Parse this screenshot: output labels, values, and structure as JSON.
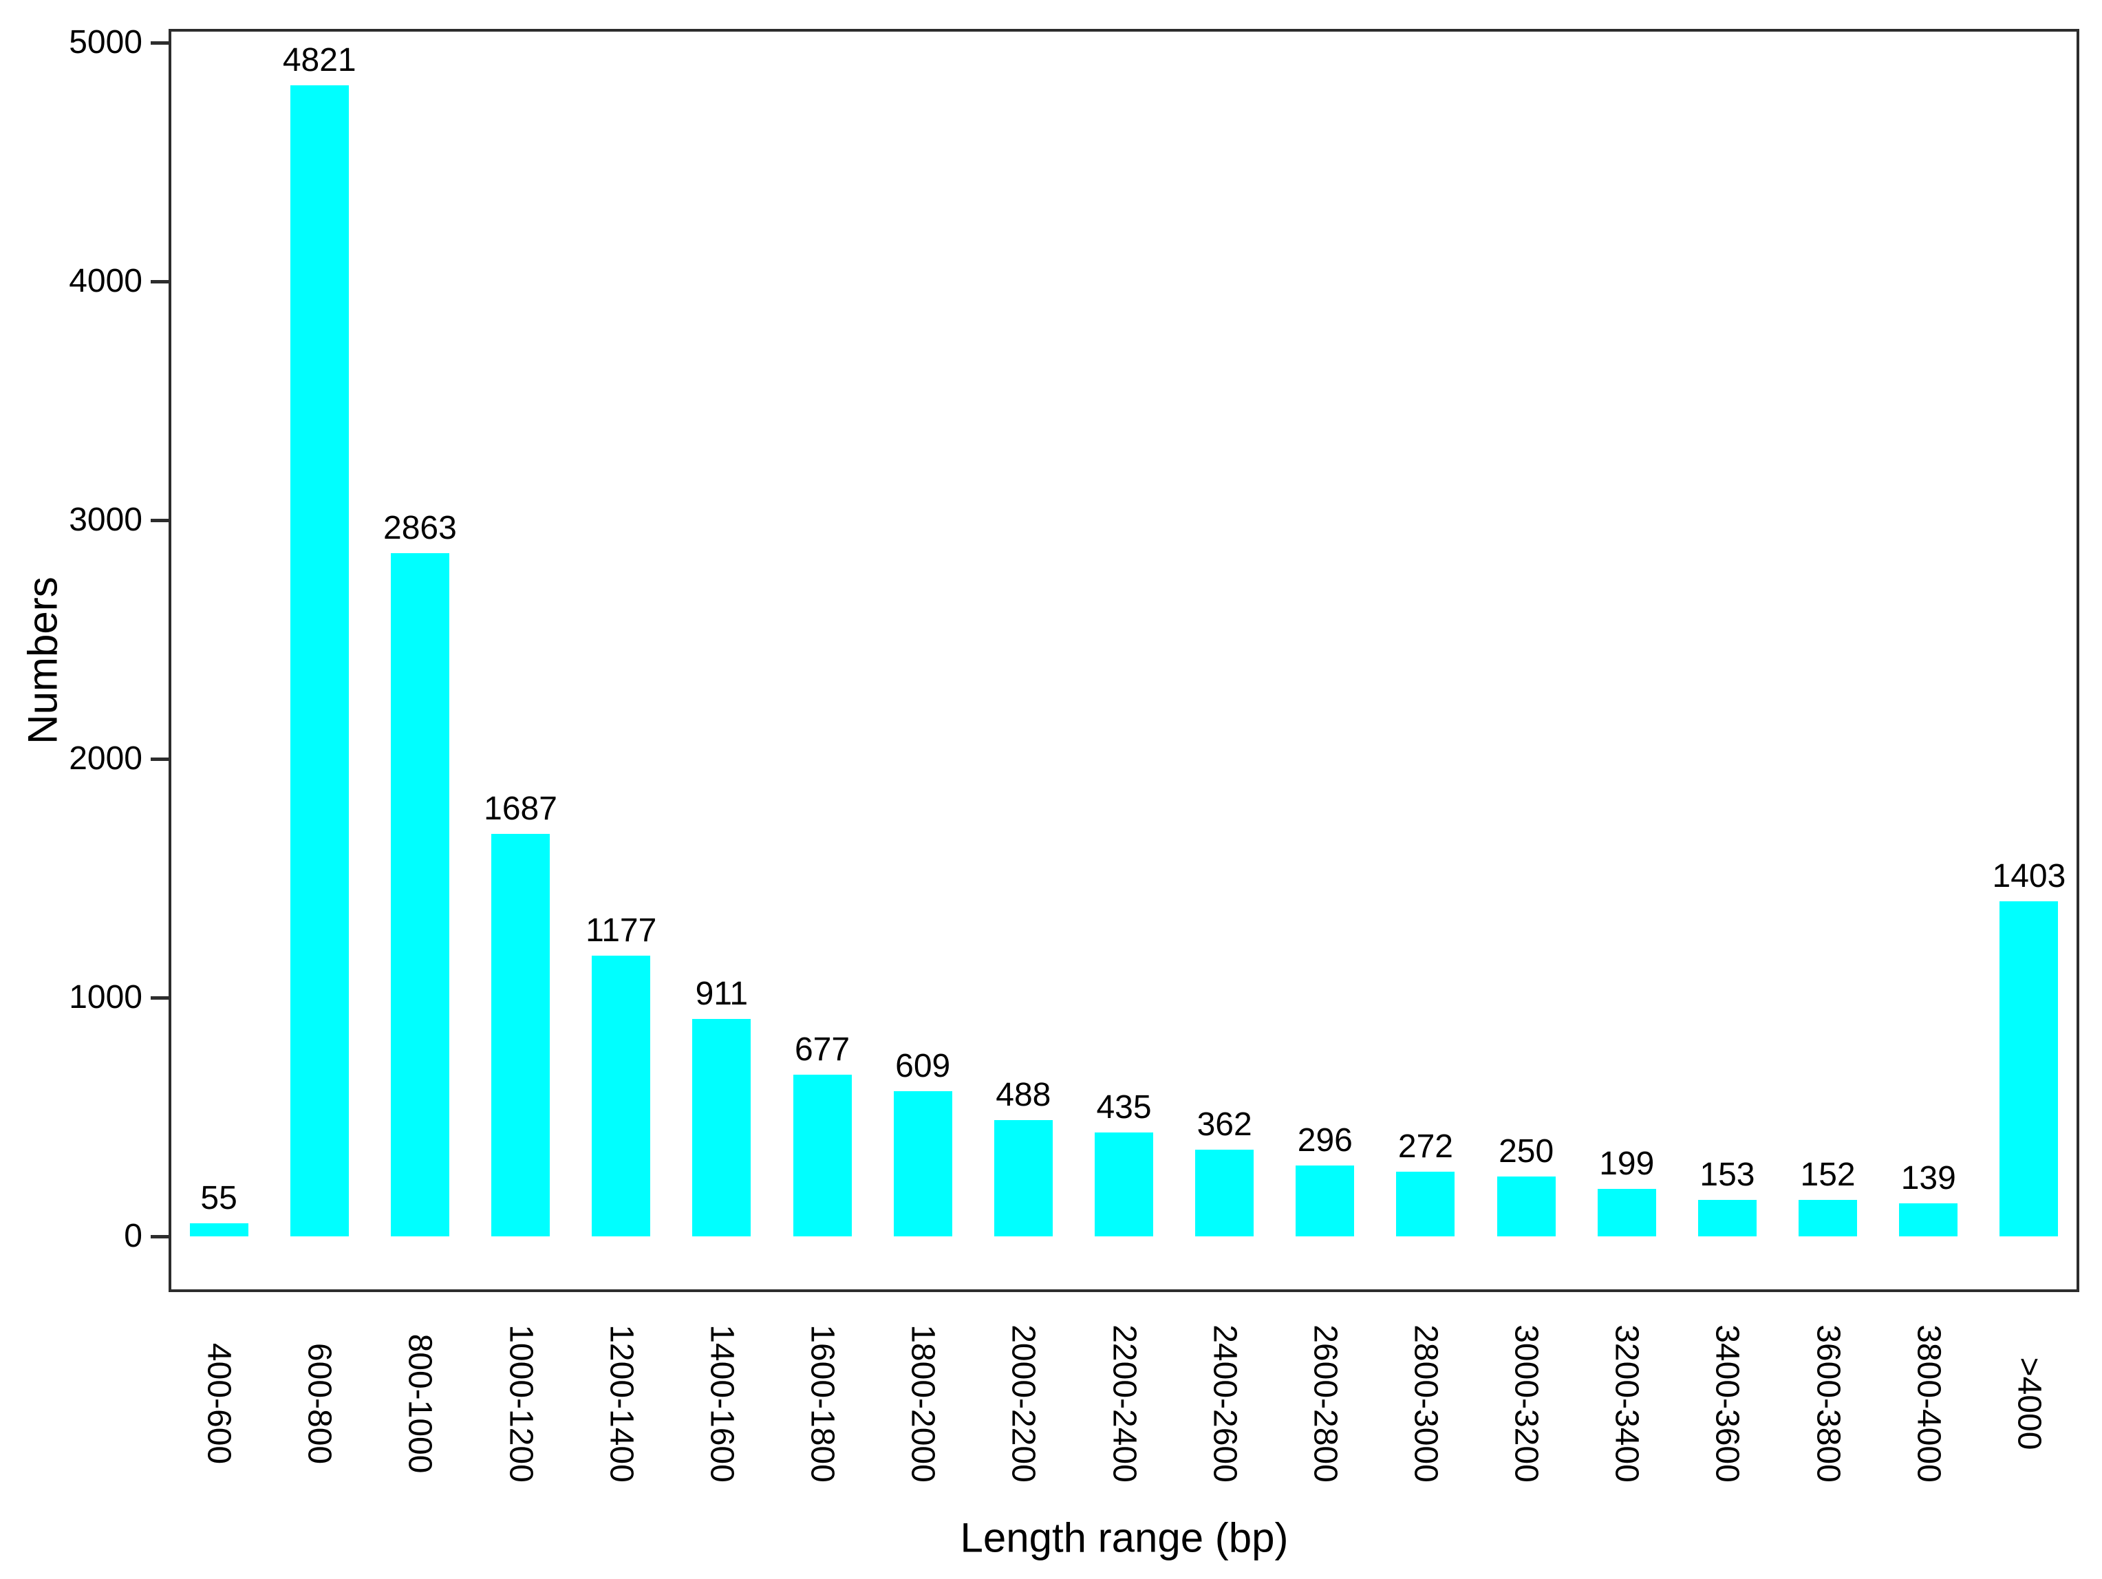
{
  "chart_data": {
    "type": "bar",
    "title": "",
    "categories": [
      "400-600",
      "600-800",
      "800-1000",
      "1000-1200",
      "1200-1400",
      "1400-1600",
      "1600-1800",
      "1800-2000",
      "2000-2200",
      "2200-2400",
      "2400-2600",
      "2600-2800",
      "2800-3000",
      "3000-3200",
      "3200-3400",
      "3400-3600",
      "3600-3800",
      "3800-4000",
      ">4000"
    ],
    "values": [
      55,
      4821,
      2863,
      1687,
      1177,
      911,
      677,
      609,
      488,
      435,
      362,
      296,
      272,
      250,
      199,
      153,
      152,
      139,
      1403
    ],
    "xlabel": "Length range (bp)",
    "ylabel": "Numbers",
    "ylim": [
      0,
      5000
    ],
    "yticks": [
      0,
      1000,
      2000,
      3000,
      4000,
      5000
    ],
    "bar_color": "#00FFFF",
    "axis_color": "#2d2d2d",
    "text_color": "#000000",
    "grid": false,
    "legend_position": "none",
    "x_tick_label_rotation_deg": 90,
    "bar_labels_shown": true
  }
}
